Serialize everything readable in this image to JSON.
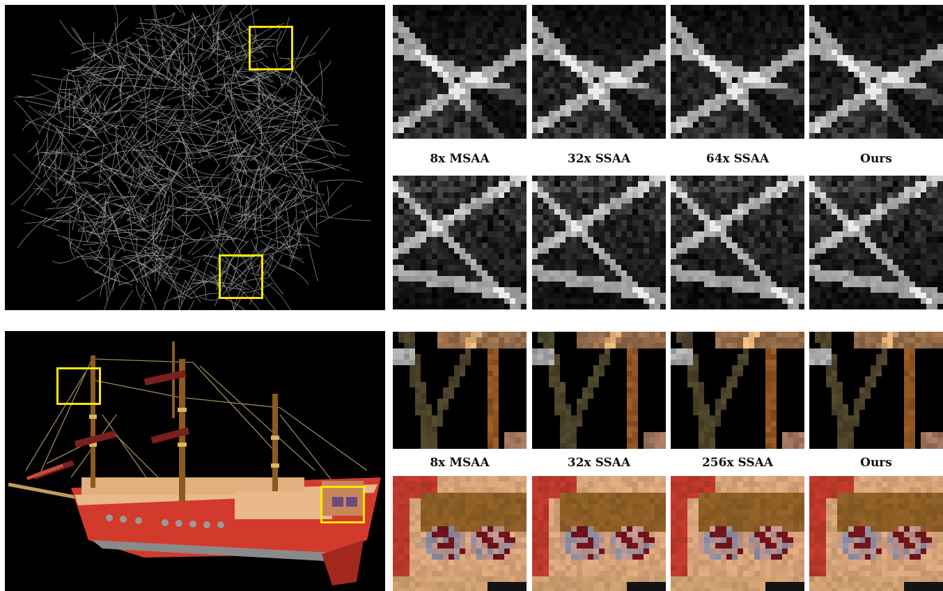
{
  "figure": {
    "row1": {
      "scene": "hairball",
      "labels": [
        "8x MSAA",
        "32x SSAA",
        "64x SSAA",
        "Ours"
      ]
    },
    "row2": {
      "scene": "ship",
      "labels": [
        "8x MSAA",
        "32x SSAA",
        "256x SSAA",
        "Ours"
      ]
    }
  },
  "colors": {
    "highlight_box": "#ffe600",
    "background": "#000000",
    "hull_red": "#d23a2c",
    "deck_tan": "#e9b98a",
    "mast_brown": "#8a5a22"
  }
}
